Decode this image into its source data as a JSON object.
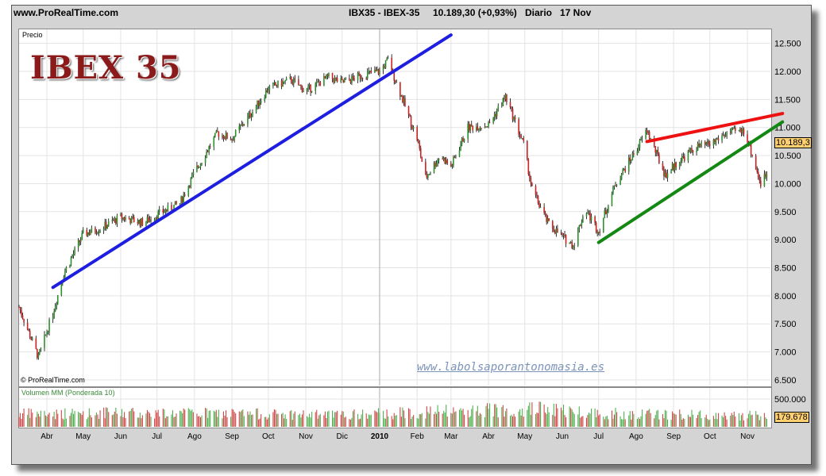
{
  "header": {
    "site": "www.ProRealTime.com",
    "instrument": "IBX35 - IBEX-35",
    "price_change": "10.189,30 (+0,93%)",
    "period": "Diario",
    "date": "17 Nov"
  },
  "logo_text": "IBEX 35",
  "panel_label": "Precio",
  "copyright": "© ProRealTime.com",
  "watermark_url": "www.labolsaporantonomasia.es",
  "current_price_box": "10.189,3",
  "volume_label": "Volumen MM (Ponderada 10)",
  "volume_box": "179.678",
  "colors": {
    "support_trend": "#1e1ee0",
    "resistance_trend": "#ee1111",
    "wedge_support": "#138813",
    "volume_bars": "#50b050",
    "logo": "#8b1a1a"
  },
  "chart_data": [
    {
      "type": "candlestick",
      "title": "IBX35 - IBEX-35",
      "ylabel": "Precio",
      "ylim": [
        6400,
        12750
      ],
      "y_ticks": [
        "12.500",
        "12.000",
        "11.500",
        "11.000",
        "10.500",
        "10.000",
        "9.500",
        "9.000",
        "8.500",
        "8.000",
        "7.500",
        "7.000",
        "6.500"
      ],
      "y_tick_values": [
        12500,
        12000,
        11500,
        11000,
        10500,
        10000,
        9500,
        9000,
        8500,
        8000,
        7500,
        7000,
        6500
      ],
      "x_ticks": [
        "Abr",
        "May",
        "Jun",
        "Jul",
        "Ago",
        "Sep",
        "Oct",
        "Nov",
        "Dic",
        "2010",
        "Feb",
        "Mar",
        "Abr",
        "May",
        "Jun",
        "Jul",
        "Ago",
        "Sep",
        "Oct",
        "Nov"
      ],
      "x_tick_dates": [
        "2009-04",
        "2009-05",
        "2009-06",
        "2009-07",
        "2009-08",
        "2009-09",
        "2009-10",
        "2009-11",
        "2009-12",
        "2010-01",
        "2010-02",
        "2010-03",
        "2010-04",
        "2010-05",
        "2010-06",
        "2010-07",
        "2010-08",
        "2010-09",
        "2010-10",
        "2010-11"
      ],
      "last_value": 10189.3,
      "price_path": [
        [
          "2009-03-09",
          7800
        ],
        [
          "2009-03-25",
          6900
        ],
        [
          "2009-04-06",
          7700
        ],
        [
          "2009-04-15",
          8400
        ],
        [
          "2009-05-01",
          9100
        ],
        [
          "2009-05-15",
          9200
        ],
        [
          "2009-06-01",
          9400
        ],
        [
          "2009-06-20",
          9300
        ],
        [
          "2009-07-01",
          9450
        ],
        [
          "2009-07-20",
          9650
        ],
        [
          "2009-08-01",
          10200
        ],
        [
          "2009-08-20",
          10900
        ],
        [
          "2009-09-01",
          10800
        ],
        [
          "2009-09-20",
          11350
        ],
        [
          "2009-10-01",
          11700
        ],
        [
          "2009-10-20",
          11850
        ],
        [
          "2009-11-01",
          11650
        ],
        [
          "2009-11-20",
          11900
        ],
        [
          "2009-12-01",
          11800
        ],
        [
          "2009-12-20",
          11950
        ],
        [
          "2010-01-01",
          12000
        ],
        [
          "2010-01-08",
          12200
        ],
        [
          "2010-01-20",
          11500
        ],
        [
          "2010-02-01",
          10800
        ],
        [
          "2010-02-08",
          10100
        ],
        [
          "2010-02-20",
          10500
        ],
        [
          "2010-03-01",
          10300
        ],
        [
          "2010-03-15",
          11000
        ],
        [
          "2010-04-01",
          11050
        ],
        [
          "2010-04-15",
          11550
        ],
        [
          "2010-04-30",
          10700
        ],
        [
          "2010-05-07",
          9900
        ],
        [
          "2010-05-20",
          9300
        ],
        [
          "2010-06-01",
          9050
        ],
        [
          "2010-06-10",
          8900
        ],
        [
          "2010-06-20",
          9550
        ],
        [
          "2010-07-01",
          9150
        ],
        [
          "2010-07-15",
          10000
        ],
        [
          "2010-08-01",
          10600
        ],
        [
          "2010-08-10",
          10950
        ],
        [
          "2010-08-25",
          10150
        ],
        [
          "2010-09-05",
          10400
        ],
        [
          "2010-09-20",
          10650
        ],
        [
          "2010-10-01",
          10700
        ],
        [
          "2010-10-15",
          10900
        ],
        [
          "2010-10-30",
          10950
        ],
        [
          "2010-11-05",
          10500
        ],
        [
          "2010-11-12",
          10000
        ],
        [
          "2010-11-17",
          10189
        ]
      ],
      "trend_lines": [
        {
          "color_key": "support_trend",
          "from": [
            "2009-04-06",
            8150
          ],
          "to": [
            "2010-03-01",
            12650
          ]
        },
        {
          "color_key": "resistance_trend",
          "from": [
            "2010-08-10",
            10750
          ],
          "to": [
            "2010-11-30",
            11250
          ]
        },
        {
          "color_key": "wedge_support",
          "from": [
            "2010-07-01",
            8950
          ],
          "to": [
            "2010-11-30",
            11100
          ]
        }
      ]
    },
    {
      "type": "bar",
      "title": "Volumen MM (Ponderada 10)",
      "y_ticks": [
        "500.000"
      ],
      "y_tick_values": [
        500000
      ],
      "ylim": [
        0,
        700000
      ],
      "last_value": 179678,
      "volume_path": [
        [
          "2009-03-09",
          230000
        ],
        [
          "2009-06-01",
          250000
        ],
        [
          "2009-09-01",
          240000
        ],
        [
          "2009-12-01",
          210000
        ],
        [
          "2010-02-01",
          260000
        ],
        [
          "2010-05-10",
          330000
        ],
        [
          "2010-07-01",
          250000
        ],
        [
          "2010-09-01",
          220000
        ],
        [
          "2010-11-17",
          200000
        ]
      ]
    }
  ]
}
